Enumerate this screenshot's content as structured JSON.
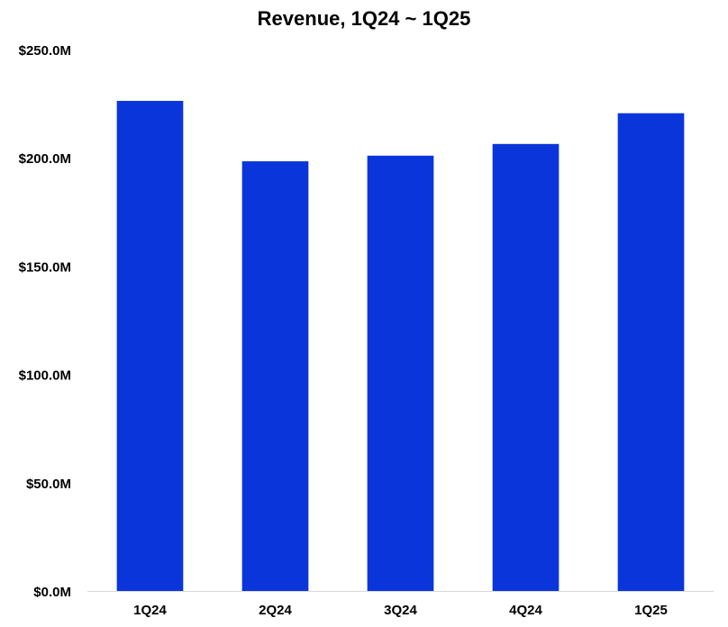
{
  "chart_data": {
    "type": "bar",
    "title": "Revenue, 1Q24 ~ 1Q25",
    "categories": [
      "1Q24",
      "2Q24",
      "3Q24",
      "4Q24",
      "1Q25"
    ],
    "values": [
      226.3,
      198.4,
      201.0,
      206.4,
      220.6
    ],
    "ylim": [
      0,
      250
    ],
    "yticks": [
      0,
      50,
      100,
      150,
      200,
      250
    ],
    "ytick_labels": [
      "$0.0M",
      "$50.0M",
      "$100.0M",
      "$150.0M",
      "$200.0M",
      "$250.0M"
    ],
    "xlabel": "",
    "ylabel": "",
    "grid": false,
    "bar_color": "#0a35db",
    "axis_color": "#d9d9d9"
  }
}
